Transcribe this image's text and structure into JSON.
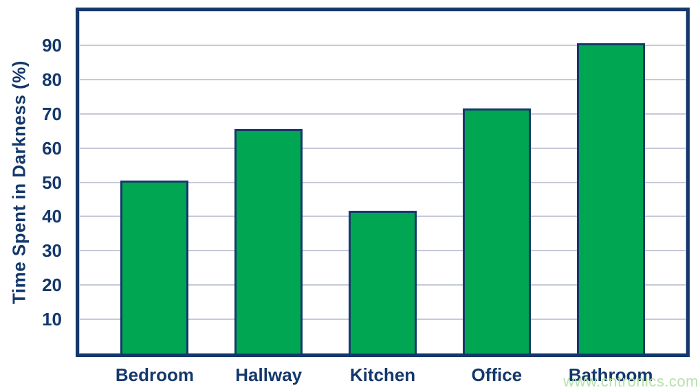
{
  "chart_data": {
    "type": "bar",
    "categories": [
      "Bedroom",
      "Hallway",
      "Kitchen",
      "Office",
      "Bathroom"
    ],
    "values": [
      50,
      65,
      41,
      71,
      90
    ],
    "title": "",
    "xlabel": "",
    "ylabel": "Time Spent in Darkness (%)",
    "ylim": [
      0,
      100
    ],
    "yticks": [
      10,
      20,
      30,
      40,
      50,
      60,
      70,
      80,
      90
    ],
    "grid": true,
    "legend": false,
    "colors": {
      "bar_fill": "#00a651",
      "bar_border": "#14386b",
      "axis_frame": "#14386b",
      "text": "#14386b",
      "gridline": "#c5c9d8",
      "watermark": "#b5e2aa",
      "background": "#ffffff"
    }
  },
  "watermark": {
    "text": "www.cntronics.com"
  }
}
